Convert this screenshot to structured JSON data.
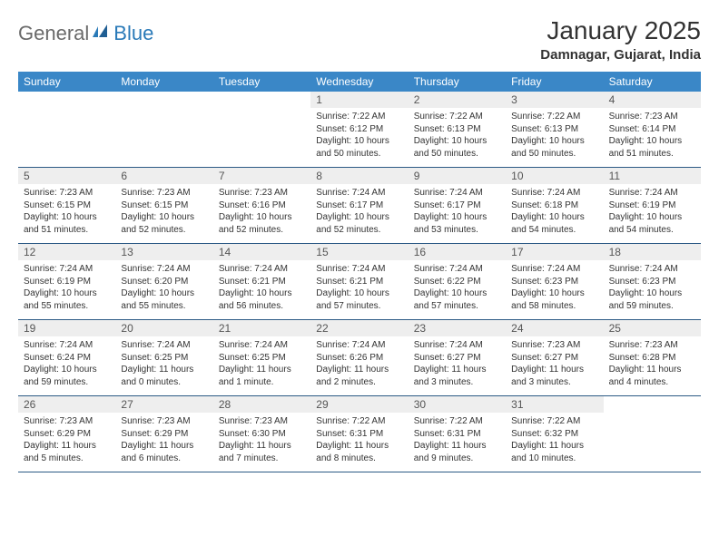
{
  "brand": {
    "part1": "General",
    "part2": "Blue"
  },
  "title": "January 2025",
  "location": "Damnagar, Gujarat, India",
  "colors": {
    "header_bg": "#3a87c7",
    "daynum_bg": "#eeeeee",
    "week_divider": "#2c5a85",
    "text": "#333333",
    "logo_gray": "#6a6a6a",
    "logo_blue": "#2a7ab8"
  },
  "weekdays": [
    "Sunday",
    "Monday",
    "Tuesday",
    "Wednesday",
    "Thursday",
    "Friday",
    "Saturday"
  ],
  "weeks": [
    [
      {
        "n": "",
        "lines": []
      },
      {
        "n": "",
        "lines": []
      },
      {
        "n": "",
        "lines": []
      },
      {
        "n": "1",
        "lines": [
          "Sunrise: 7:22 AM",
          "Sunset: 6:12 PM",
          "Daylight: 10 hours",
          "and 50 minutes."
        ]
      },
      {
        "n": "2",
        "lines": [
          "Sunrise: 7:22 AM",
          "Sunset: 6:13 PM",
          "Daylight: 10 hours",
          "and 50 minutes."
        ]
      },
      {
        "n": "3",
        "lines": [
          "Sunrise: 7:22 AM",
          "Sunset: 6:13 PM",
          "Daylight: 10 hours",
          "and 50 minutes."
        ]
      },
      {
        "n": "4",
        "lines": [
          "Sunrise: 7:23 AM",
          "Sunset: 6:14 PM",
          "Daylight: 10 hours",
          "and 51 minutes."
        ]
      }
    ],
    [
      {
        "n": "5",
        "lines": [
          "Sunrise: 7:23 AM",
          "Sunset: 6:15 PM",
          "Daylight: 10 hours",
          "and 51 minutes."
        ]
      },
      {
        "n": "6",
        "lines": [
          "Sunrise: 7:23 AM",
          "Sunset: 6:15 PM",
          "Daylight: 10 hours",
          "and 52 minutes."
        ]
      },
      {
        "n": "7",
        "lines": [
          "Sunrise: 7:23 AM",
          "Sunset: 6:16 PM",
          "Daylight: 10 hours",
          "and 52 minutes."
        ]
      },
      {
        "n": "8",
        "lines": [
          "Sunrise: 7:24 AM",
          "Sunset: 6:17 PM",
          "Daylight: 10 hours",
          "and 52 minutes."
        ]
      },
      {
        "n": "9",
        "lines": [
          "Sunrise: 7:24 AM",
          "Sunset: 6:17 PM",
          "Daylight: 10 hours",
          "and 53 minutes."
        ]
      },
      {
        "n": "10",
        "lines": [
          "Sunrise: 7:24 AM",
          "Sunset: 6:18 PM",
          "Daylight: 10 hours",
          "and 54 minutes."
        ]
      },
      {
        "n": "11",
        "lines": [
          "Sunrise: 7:24 AM",
          "Sunset: 6:19 PM",
          "Daylight: 10 hours",
          "and 54 minutes."
        ]
      }
    ],
    [
      {
        "n": "12",
        "lines": [
          "Sunrise: 7:24 AM",
          "Sunset: 6:19 PM",
          "Daylight: 10 hours",
          "and 55 minutes."
        ]
      },
      {
        "n": "13",
        "lines": [
          "Sunrise: 7:24 AM",
          "Sunset: 6:20 PM",
          "Daylight: 10 hours",
          "and 55 minutes."
        ]
      },
      {
        "n": "14",
        "lines": [
          "Sunrise: 7:24 AM",
          "Sunset: 6:21 PM",
          "Daylight: 10 hours",
          "and 56 minutes."
        ]
      },
      {
        "n": "15",
        "lines": [
          "Sunrise: 7:24 AM",
          "Sunset: 6:21 PM",
          "Daylight: 10 hours",
          "and 57 minutes."
        ]
      },
      {
        "n": "16",
        "lines": [
          "Sunrise: 7:24 AM",
          "Sunset: 6:22 PM",
          "Daylight: 10 hours",
          "and 57 minutes."
        ]
      },
      {
        "n": "17",
        "lines": [
          "Sunrise: 7:24 AM",
          "Sunset: 6:23 PM",
          "Daylight: 10 hours",
          "and 58 minutes."
        ]
      },
      {
        "n": "18",
        "lines": [
          "Sunrise: 7:24 AM",
          "Sunset: 6:23 PM",
          "Daylight: 10 hours",
          "and 59 minutes."
        ]
      }
    ],
    [
      {
        "n": "19",
        "lines": [
          "Sunrise: 7:24 AM",
          "Sunset: 6:24 PM",
          "Daylight: 10 hours",
          "and 59 minutes."
        ]
      },
      {
        "n": "20",
        "lines": [
          "Sunrise: 7:24 AM",
          "Sunset: 6:25 PM",
          "Daylight: 11 hours",
          "and 0 minutes."
        ]
      },
      {
        "n": "21",
        "lines": [
          "Sunrise: 7:24 AM",
          "Sunset: 6:25 PM",
          "Daylight: 11 hours",
          "and 1 minute."
        ]
      },
      {
        "n": "22",
        "lines": [
          "Sunrise: 7:24 AM",
          "Sunset: 6:26 PM",
          "Daylight: 11 hours",
          "and 2 minutes."
        ]
      },
      {
        "n": "23",
        "lines": [
          "Sunrise: 7:24 AM",
          "Sunset: 6:27 PM",
          "Daylight: 11 hours",
          "and 3 minutes."
        ]
      },
      {
        "n": "24",
        "lines": [
          "Sunrise: 7:23 AM",
          "Sunset: 6:27 PM",
          "Daylight: 11 hours",
          "and 3 minutes."
        ]
      },
      {
        "n": "25",
        "lines": [
          "Sunrise: 7:23 AM",
          "Sunset: 6:28 PM",
          "Daylight: 11 hours",
          "and 4 minutes."
        ]
      }
    ],
    [
      {
        "n": "26",
        "lines": [
          "Sunrise: 7:23 AM",
          "Sunset: 6:29 PM",
          "Daylight: 11 hours",
          "and 5 minutes."
        ]
      },
      {
        "n": "27",
        "lines": [
          "Sunrise: 7:23 AM",
          "Sunset: 6:29 PM",
          "Daylight: 11 hours",
          "and 6 minutes."
        ]
      },
      {
        "n": "28",
        "lines": [
          "Sunrise: 7:23 AM",
          "Sunset: 6:30 PM",
          "Daylight: 11 hours",
          "and 7 minutes."
        ]
      },
      {
        "n": "29",
        "lines": [
          "Sunrise: 7:22 AM",
          "Sunset: 6:31 PM",
          "Daylight: 11 hours",
          "and 8 minutes."
        ]
      },
      {
        "n": "30",
        "lines": [
          "Sunrise: 7:22 AM",
          "Sunset: 6:31 PM",
          "Daylight: 11 hours",
          "and 9 minutes."
        ]
      },
      {
        "n": "31",
        "lines": [
          "Sunrise: 7:22 AM",
          "Sunset: 6:32 PM",
          "Daylight: 11 hours",
          "and 10 minutes."
        ]
      },
      {
        "n": "",
        "lines": []
      }
    ]
  ]
}
